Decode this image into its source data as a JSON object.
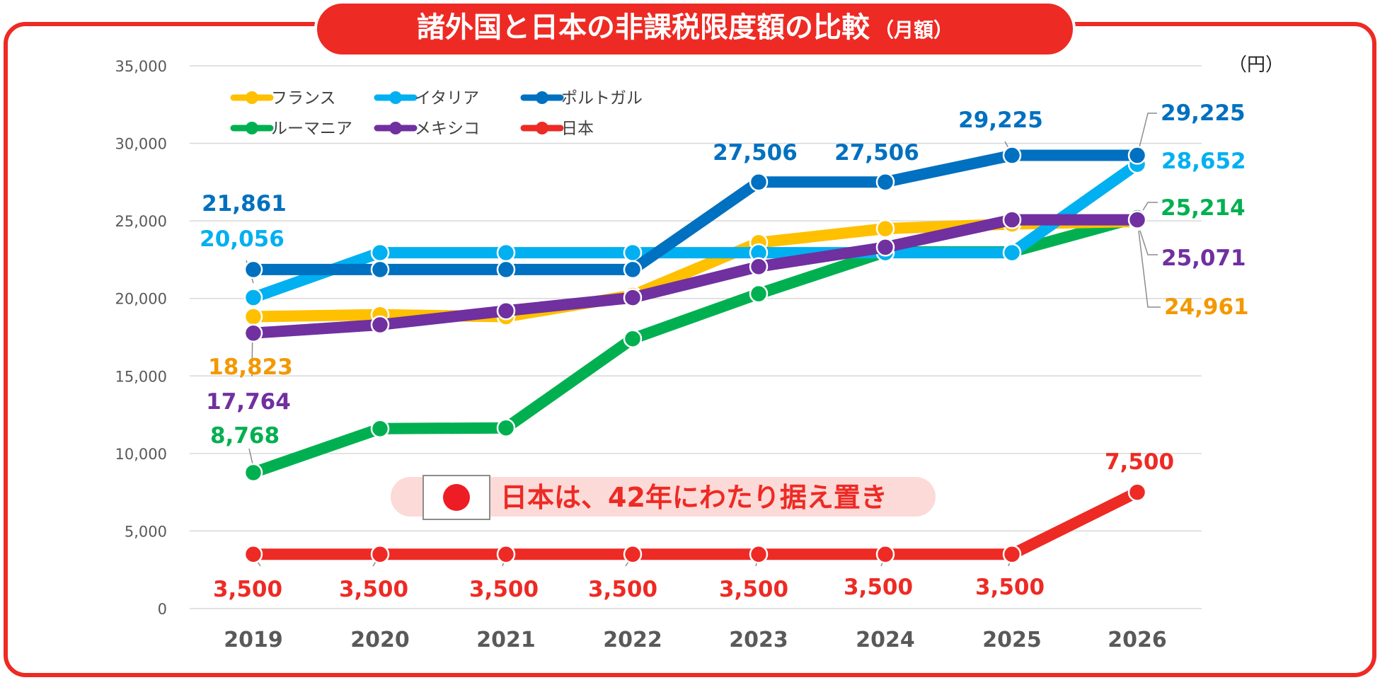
{
  "chart_data": {
    "type": "line",
    "title": "諸外国と日本の非課税限度額の比較",
    "title_suffix": "（月額）",
    "unit": "（円）",
    "categories": [
      "2019",
      "2020",
      "2021",
      "2022",
      "2023",
      "2024",
      "2025",
      "2026"
    ],
    "ylim": [
      0,
      35000
    ],
    "yticks": [
      0,
      5000,
      10000,
      15000,
      20000,
      25000,
      30000,
      35000
    ],
    "ytick_labels": [
      "0",
      "5,000",
      "10,000",
      "15,000",
      "20,000",
      "25,000",
      "30,000",
      "35,000"
    ],
    "grid": true,
    "series": [
      {
        "name": "フランス",
        "color": "#FFC000",
        "label_color": "#F39800",
        "values": [
          18823,
          18950,
          18823,
          20200,
          23600,
          24500,
          24800,
          24961
        ]
      },
      {
        "name": "イタリア",
        "color": "#00B0F0",
        "label_color": "#00B0F0",
        "values": [
          20056,
          22950,
          22950,
          22950,
          22950,
          22950,
          22950,
          28652
        ]
      },
      {
        "name": "ポルトガル",
        "color": "#0070C0",
        "label_color": "#0070C0",
        "values": [
          21861,
          21861,
          21861,
          21861,
          27506,
          27506,
          29225,
          29225
        ]
      },
      {
        "name": "ルーマニア",
        "color": "#00B050",
        "label_color": "#00B050",
        "values": [
          8768,
          11600,
          11650,
          17400,
          20300,
          23000,
          23000,
          25214
        ]
      },
      {
        "name": "メキシコ",
        "color": "#7030A0",
        "label_color": "#7030A0",
        "values": [
          17764,
          18300,
          19200,
          20050,
          22050,
          23300,
          25071,
          25071
        ]
      },
      {
        "name": "日本",
        "color": "#EE2A24",
        "label_color": "#EE2A24",
        "values": [
          3500,
          3500,
          3500,
          3500,
          3500,
          3500,
          3500,
          7500
        ]
      }
    ],
    "data_labels": [
      {
        "series": "ポルトガル",
        "text": "21,861"
      },
      {
        "series": "イタリア",
        "text": "20,056"
      },
      {
        "series": "フランス",
        "text": "18,823"
      },
      {
        "series": "メキシコ",
        "text": "17,764"
      },
      {
        "series": "ルーマニア",
        "text": "8,768"
      },
      {
        "series": "ポルトガル",
        "text": "27,506"
      },
      {
        "series": "ポルトガル",
        "text": "27,506"
      },
      {
        "series": "ポルトガル",
        "text": "29,225"
      },
      {
        "series": "ポルトガル",
        "text": "29,225"
      },
      {
        "series": "イタリア",
        "text": "28,652"
      },
      {
        "series": "ルーマニア",
        "text": "25,214"
      },
      {
        "series": "メキシコ",
        "text": "25,071"
      },
      {
        "series": "フランス",
        "text": "24,961"
      },
      {
        "series": "日本",
        "text": "7,500"
      },
      {
        "series": "日本",
        "text": "3,500"
      },
      {
        "series": "日本",
        "text": "3,500"
      },
      {
        "series": "日本",
        "text": "3,500"
      },
      {
        "series": "日本",
        "text": "3,500"
      },
      {
        "series": "日本",
        "text": "3,500"
      },
      {
        "series": "日本",
        "text": "3,500"
      },
      {
        "series": "日本",
        "text": "3,500"
      }
    ],
    "annotation": "日本は、42年にわたり据え置き"
  }
}
